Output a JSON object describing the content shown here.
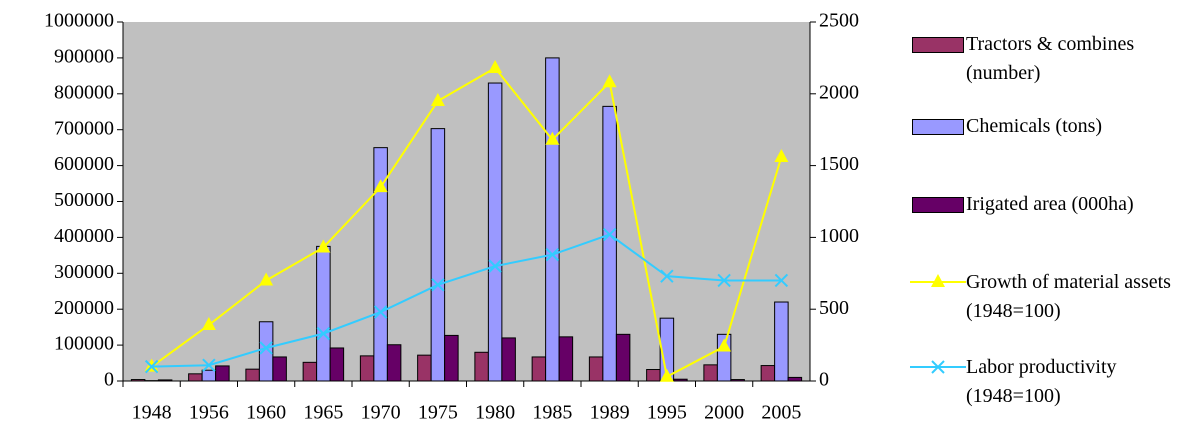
{
  "chart_data": {
    "type": "bar-line",
    "categories": [
      "1948",
      "1956",
      "1960",
      "1965",
      "1970",
      "1975",
      "1980",
      "1985",
      "1989",
      "1995",
      "2000",
      "2005"
    ],
    "series": [
      {
        "name": "Tractors & combines (number)",
        "type": "bar",
        "color": "#993366",
        "values": [
          4000,
          20000,
          33000,
          52000,
          70000,
          72000,
          80000,
          67000,
          67000,
          32000,
          45000,
          43000
        ]
      },
      {
        "name": "Chemicals (tons)",
        "type": "bar",
        "color": "#9999ff",
        "values": [
          1000,
          30000,
          165000,
          375000,
          650000,
          703000,
          830000,
          900000,
          765000,
          175000,
          130000,
          220000
        ]
      },
      {
        "name": "Irigated area (000ha)",
        "type": "bar",
        "color": "#660066",
        "values": [
          3000,
          42000,
          67000,
          92000,
          101000,
          127000,
          120000,
          123000,
          130000,
          5000,
          4000,
          10000
        ]
      },
      {
        "name": "Growth of material assets (1948=100)",
        "type": "line",
        "axis": "y2",
        "marker": "triangle",
        "color": "#ffff00",
        "values": [
          100,
          390,
          700,
          930,
          1350,
          1950,
          2180,
          1680,
          2080,
          30,
          240,
          1560
        ]
      },
      {
        "name": "Labor productivity (1948=100)",
        "type": "line",
        "axis": "y2",
        "marker": "x",
        "color": "#33ccff",
        "values": [
          100,
          110,
          230,
          330,
          480,
          670,
          800,
          880,
          1020,
          730,
          700,
          700
        ]
      }
    ],
    "ylim": [
      0,
      1000000
    ],
    "yticks": [
      0,
      100000,
      200000,
      300000,
      400000,
      500000,
      600000,
      700000,
      800000,
      900000,
      1000000
    ],
    "y2lim": [
      0,
      2500
    ],
    "y2ticks": [
      0,
      500,
      1000,
      1500,
      2000,
      2500
    ],
    "plot_background": "#c0c0c0",
    "legend": "right"
  }
}
